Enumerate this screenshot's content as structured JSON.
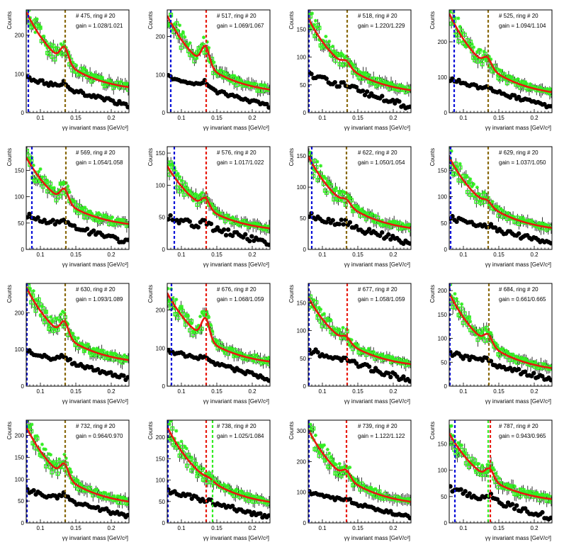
{
  "page": {
    "background": "#ffffff"
  },
  "style": {
    "green": "#33ee22",
    "red": "#e8190f",
    "black": "#000000",
    "blue": "#0a10d8",
    "brown": "#8a6a10"
  },
  "chart_data": [
    {
      "type": "scatter",
      "panel": "475",
      "label": "# 475, ring # 20",
      "gain": "gain = 1.028/1.021",
      "xlabel": "γγ invariant mass [GeV/c²]",
      "ylabel": "Counts",
      "xlim": [
        0.08,
        0.225
      ],
      "ylim": [
        0,
        265
      ],
      "xticks": [
        0.1,
        0.15,
        0.2
      ],
      "xtick_labels": [
        "0.1",
        "0.15",
        "0.2"
      ],
      "yticks": [
        0,
        100,
        200
      ],
      "ytick_labels": [
        "0",
        "100",
        "200"
      ],
      "peak_x": 0.134,
      "base_start": 260,
      "base_end": 50,
      "peak_height": 40,
      "lower_start": 90,
      "lower_end": 18,
      "lower_peak": 15,
      "lines": [
        {
          "x": 0.083,
          "color": "#0a10d8"
        },
        {
          "x": 0.135,
          "color": "#8a6a10"
        }
      ]
    },
    {
      "type": "scatter",
      "panel": "517",
      "label": "# 517, ring # 20",
      "gain": "gain = 1.069/1.067",
      "xlabel": "γγ invariant mass [GeV/c²]",
      "ylabel": "Counts",
      "xlim": [
        0.08,
        0.225
      ],
      "ylim": [
        0,
        270
      ],
      "xticks": [
        0.1,
        0.15,
        0.2
      ],
      "xtick_labels": [
        "0.1",
        "0.15",
        "0.2"
      ],
      "yticks": [
        0,
        100,
        200
      ],
      "ytick_labels": [
        "0",
        "100",
        "200"
      ],
      "peak_x": 0.134,
      "base_start": 255,
      "base_end": 45,
      "peak_height": 50,
      "lower_start": 95,
      "lower_end": 15,
      "lower_peak": 15,
      "lines": [
        {
          "x": 0.085,
          "color": "#0a10d8"
        },
        {
          "x": 0.135,
          "color": "#e8190f"
        }
      ]
    },
    {
      "type": "scatter",
      "panel": "518",
      "label": "# 518, ring # 20",
      "gain": "gain = 1.220/1.229",
      "xlabel": "γγ invariant mass [GeV/c²]",
      "ylabel": "Counts",
      "xlim": [
        0.08,
        0.225
      ],
      "ylim": [
        0,
        185
      ],
      "xticks": [
        0.1,
        0.15,
        0.2
      ],
      "xtick_labels": [
        "0.1",
        "0.15",
        "0.2"
      ],
      "yticks": [
        0,
        50,
        100,
        150
      ],
      "ytick_labels": [
        "0",
        "50",
        "100",
        "150"
      ],
      "peak_x": 0.134,
      "base_start": 170,
      "base_end": 30,
      "peak_height": 10,
      "lower_start": 68,
      "lower_end": 10,
      "lower_peak": 5,
      "lines": [
        {
          "x": 0.081,
          "color": "#0a10d8"
        },
        {
          "x": 0.135,
          "color": "#8a6a10"
        }
      ]
    },
    {
      "type": "scatter",
      "panel": "525",
      "label": "# 525, ring # 20",
      "gain": "gain = 1.094/1.104",
      "xlabel": "γγ invariant mass [GeV/c²]",
      "ylabel": "Counts",
      "xlim": [
        0.08,
        0.225
      ],
      "ylim": [
        0,
        290
      ],
      "xticks": [
        0.1,
        0.15,
        0.2
      ],
      "xtick_labels": [
        "0.1",
        "0.15",
        "0.2"
      ],
      "yticks": [
        0,
        100,
        200
      ],
      "ytick_labels": [
        "0",
        "100",
        "200"
      ],
      "peak_x": 0.134,
      "base_start": 280,
      "base_end": 40,
      "peak_height": 25,
      "lower_start": 95,
      "lower_end": 15,
      "lower_peak": 10,
      "lines": [
        {
          "x": 0.087,
          "color": "#0a10d8"
        },
        {
          "x": 0.135,
          "color": "#8a6a10"
        }
      ]
    },
    {
      "type": "scatter",
      "panel": "569",
      "label": "# 569, ring # 20",
      "gain": "gain = 1.054/1.058",
      "xlabel": "γγ invariant mass [GeV/c²]",
      "ylabel": "Counts",
      "xlim": [
        0.08,
        0.225
      ],
      "ylim": [
        0,
        195
      ],
      "xticks": [
        0.1,
        0.15,
        0.2
      ],
      "xtick_labels": [
        "0.1",
        "0.15",
        "0.2"
      ],
      "yticks": [
        0,
        50,
        100,
        150
      ],
      "ytick_labels": [
        "0",
        "50",
        "100",
        "150"
      ],
      "peak_x": 0.134,
      "base_start": 175,
      "base_end": 38,
      "peak_height": 25,
      "lower_start": 65,
      "lower_end": 13,
      "lower_peak": 10,
      "lines": [
        {
          "x": 0.088,
          "color": "#0a10d8"
        },
        {
          "x": 0.136,
          "color": "#8a6a10"
        }
      ]
    },
    {
      "type": "scatter",
      "panel": "576",
      "label": "# 576, ring # 20",
      "gain": "gain = 1.017/1.022",
      "xlabel": "γγ invariant mass [GeV/c²]",
      "ylabel": "Counts",
      "xlim": [
        0.08,
        0.225
      ],
      "ylim": [
        0,
        160
      ],
      "xticks": [
        0.1,
        0.15,
        0.2
      ],
      "xtick_labels": [
        "0.1",
        "0.15",
        "0.2"
      ],
      "yticks": [
        0,
        50,
        100,
        150
      ],
      "ytick_labels": [
        "0",
        "50",
        "100",
        "150"
      ],
      "peak_x": 0.134,
      "base_start": 130,
      "base_end": 25,
      "peak_height": 15,
      "lower_start": 50,
      "lower_end": 10,
      "lower_peak": 8,
      "lines": [
        {
          "x": 0.09,
          "color": "#0a10d8"
        },
        {
          "x": 0.135,
          "color": "#e8190f"
        }
      ]
    },
    {
      "type": "scatter",
      "panel": "622",
      "label": "# 622, ring # 20",
      "gain": "gain = 1.050/1.054",
      "xlabel": "γγ invariant mass [GeV/c²]",
      "ylabel": "Counts",
      "xlim": [
        0.08,
        0.225
      ],
      "ylim": [
        0,
        165
      ],
      "xticks": [
        0.1,
        0.15,
        0.2
      ],
      "xtick_labels": [
        "0.1",
        "0.15",
        "0.2"
      ],
      "yticks": [
        0,
        50,
        100,
        150
      ],
      "ytick_labels": [
        "0",
        "50",
        "100",
        "150"
      ],
      "peak_x": 0.134,
      "base_start": 150,
      "base_end": 25,
      "peak_height": 8,
      "lower_start": 55,
      "lower_end": 10,
      "lower_peak": 5,
      "lines": [
        {
          "x": 0.085,
          "color": "#0a10d8"
        },
        {
          "x": 0.134,
          "color": "#8a6a10"
        }
      ]
    },
    {
      "type": "scatter",
      "panel": "629",
      "label": "# 629, ring # 20",
      "gain": "gain = 1.037/1.050",
      "xlabel": "γγ invariant mass [GeV/c²]",
      "ylabel": "Counts",
      "xlim": [
        0.08,
        0.225
      ],
      "ylim": [
        0,
        195
      ],
      "xticks": [
        0.1,
        0.15,
        0.2
      ],
      "xtick_labels": [
        "0.1",
        "0.15",
        "0.2"
      ],
      "yticks": [
        0,
        50,
        100,
        150
      ],
      "ytick_labels": [
        "0",
        "50",
        "100",
        "150"
      ],
      "peak_x": 0.134,
      "base_start": 175,
      "base_end": 30,
      "peak_height": 8,
      "lower_start": 60,
      "lower_end": 10,
      "lower_peak": 5,
      "lines": [
        {
          "x": 0.082,
          "color": "#0a10d8"
        },
        {
          "x": 0.135,
          "color": "#8a6a10"
        }
      ]
    },
    {
      "type": "scatter",
      "panel": "630",
      "label": "# 630, ring # 20",
      "gain": "gain = 1.093/1.089",
      "xlabel": "γγ invariant mass [GeV/c²]",
      "ylabel": "Counts",
      "xlim": [
        0.08,
        0.225
      ],
      "ylim": [
        0,
        280
      ],
      "xticks": [
        0.1,
        0.15,
        0.2
      ],
      "xtick_labels": [
        "0.1",
        "0.15",
        "0.2"
      ],
      "yticks": [
        0,
        100,
        200
      ],
      "ytick_labels": [
        "0",
        "100",
        "200"
      ],
      "peak_x": 0.134,
      "base_start": 270,
      "base_end": 55,
      "peak_height": 40,
      "lower_start": 95,
      "lower_end": 20,
      "lower_peak": 15,
      "lines": [
        {
          "x": 0.081,
          "color": "#0a10d8"
        },
        {
          "x": 0.135,
          "color": "#8a6a10"
        }
      ]
    },
    {
      "type": "scatter",
      "panel": "676",
      "label": "# 676, ring # 20",
      "gain": "gain = 1.068/1.059",
      "xlabel": "γγ invariant mass [GeV/c²]",
      "ylabel": "Counts",
      "xlim": [
        0.08,
        0.225
      ],
      "ylim": [
        0,
        270
      ],
      "xticks": [
        0.1,
        0.15,
        0.2
      ],
      "xtick_labels": [
        "0.1",
        "0.15",
        "0.2"
      ],
      "yticks": [
        0,
        100,
        200
      ],
      "ytick_labels": [
        "0",
        "100",
        "200"
      ],
      "peak_x": 0.134,
      "base_start": 245,
      "base_end": 50,
      "peak_height": 55,
      "lower_start": 95,
      "lower_end": 18,
      "lower_peak": 12,
      "lines": [
        {
          "x": 0.086,
          "color": "#0a10d8"
        },
        {
          "x": 0.135,
          "color": "#e8190f"
        }
      ]
    },
    {
      "type": "scatter",
      "panel": "677",
      "label": "# 677, ring # 20",
      "gain": "gain = 1.058/1.059",
      "xlabel": "γγ invariant mass [GeV/c²]",
      "ylabel": "Counts",
      "xlim": [
        0.08,
        0.225
      ],
      "ylim": [
        0,
        185
      ],
      "xticks": [
        0.1,
        0.15,
        0.2
      ],
      "xtick_labels": [
        "0.1",
        "0.15",
        "0.2"
      ],
      "yticks": [
        0,
        50,
        100,
        150
      ],
      "ytick_labels": [
        "0",
        "50",
        "100",
        "150"
      ],
      "peak_x": 0.134,
      "base_start": 160,
      "base_end": 30,
      "peak_height": 10,
      "lower_start": 65,
      "lower_end": 10,
      "lower_peak": 5,
      "lines": [
        {
          "x": 0.081,
          "color": "#0a10d8"
        },
        {
          "x": 0.135,
          "color": "#e8190f"
        }
      ]
    },
    {
      "type": "scatter",
      "panel": "684",
      "label": "# 684, ring # 20",
      "gain": "gain = 0.661/0.665",
      "xlabel": "γγ invariant mass [GeV/c²]",
      "ylabel": "Counts",
      "xlim": [
        0.08,
        0.225
      ],
      "ylim": [
        0,
        215
      ],
      "xticks": [
        0.1,
        0.15,
        0.2
      ],
      "xtick_labels": [
        "0.1",
        "0.15",
        "0.2"
      ],
      "yticks": [
        0,
        50,
        100,
        150,
        200
      ],
      "ytick_labels": [
        "0",
        "50",
        "100",
        "150",
        "200"
      ],
      "peak_x": 0.135,
      "base_start": 195,
      "base_end": 25,
      "peak_height": 20,
      "lower_start": 70,
      "lower_end": 12,
      "lower_peak": 8,
      "lines": [
        {
          "x": 0.081,
          "color": "#0a10d8"
        },
        {
          "x": 0.136,
          "color": "#8a6a10"
        }
      ]
    },
    {
      "type": "scatter",
      "panel": "732",
      "label": "# 732, ring # 20",
      "gain": "gain = 0.964/0.970",
      "xlabel": "γγ invariant mass [GeV/c²]",
      "ylabel": "Counts",
      "xlim": [
        0.08,
        0.225
      ],
      "ylim": [
        0,
        235
      ],
      "xticks": [
        0.1,
        0.15,
        0.2
      ],
      "xtick_labels": [
        "0.1",
        "0.15",
        "0.2"
      ],
      "yticks": [
        0,
        50,
        100,
        150,
        200
      ],
      "ytick_labels": [
        "0",
        "50",
        "100",
        "150",
        "200"
      ],
      "peak_x": 0.134,
      "base_start": 220,
      "base_end": 35,
      "peak_height": 30,
      "lower_start": 75,
      "lower_end": 15,
      "lower_peak": 12,
      "lines": [
        {
          "x": 0.081,
          "color": "#0a10d8"
        },
        {
          "x": 0.135,
          "color": "#8a6a10"
        }
      ]
    },
    {
      "type": "scatter",
      "panel": "738",
      "label": "# 738, ring # 20",
      "gain": "gain = 1.025/1.084",
      "xlabel": "γγ invariant mass [GeV/c²]",
      "ylabel": "Counts",
      "xlim": [
        0.08,
        0.225
      ],
      "ylim": [
        0,
        240
      ],
      "xticks": [
        0.1,
        0.15,
        0.2
      ],
      "xtick_labels": [
        "0.1",
        "0.15",
        "0.2"
      ],
      "yticks": [
        0,
        50,
        100,
        150,
        200
      ],
      "ytick_labels": [
        "0",
        "50",
        "100",
        "150",
        "200"
      ],
      "peak_x": 0.14,
      "base_start": 225,
      "base_end": 35,
      "peak_height": 5,
      "lower_start": 75,
      "lower_end": 12,
      "lower_peak": 3,
      "lines": [
        {
          "x": 0.081,
          "color": "#0a10d8"
        },
        {
          "x": 0.135,
          "color": "#e8190f"
        },
        {
          "x": 0.144,
          "color": "#33ee22"
        }
      ]
    },
    {
      "type": "scatter",
      "panel": "739",
      "label": "# 739, ring # 20",
      "gain": "gain = 1.122/1.122",
      "xlabel": "γγ invariant mass [GeV/c²]",
      "ylabel": "Counts",
      "xlim": [
        0.08,
        0.225
      ],
      "ylim": [
        0,
        335
      ],
      "xticks": [
        0.1,
        0.15,
        0.2
      ],
      "xtick_labels": [
        "0.1",
        "0.15",
        "0.2"
      ],
      "yticks": [
        0,
        100,
        200,
        300
      ],
      "ytick_labels": [
        "0",
        "100",
        "200",
        "300"
      ],
      "peak_x": 0.134,
      "base_start": 305,
      "base_end": 50,
      "peak_height": 25,
      "lower_start": 100,
      "lower_end": 18,
      "lower_peak": 10,
      "lines": [
        {
          "x": 0.081,
          "color": "#0a10d8"
        },
        {
          "x": 0.134,
          "color": "#e8190f"
        }
      ]
    },
    {
      "type": "scatter",
      "panel": "787",
      "label": "# 787, ring # 20",
      "gain": "gain = 0.943/0.965",
      "xlabel": "γγ invariant mass [GeV/c²]",
      "ylabel": "Counts",
      "xlim": [
        0.08,
        0.225
      ],
      "ylim": [
        0,
        195
      ],
      "xticks": [
        0.1,
        0.15,
        0.2
      ],
      "xtick_labels": [
        "0.1",
        "0.15",
        "0.2"
      ],
      "yticks": [
        0,
        50,
        100,
        150
      ],
      "ytick_labels": [
        "0",
        "50",
        "100",
        "150"
      ],
      "peak_x": 0.137,
      "base_start": 170,
      "base_end": 35,
      "peak_height": 20,
      "lower_start": 65,
      "lower_end": 10,
      "lower_peak": 8,
      "lines": [
        {
          "x": 0.088,
          "color": "#0a10d8"
        },
        {
          "x": 0.135,
          "color": "#33ee22"
        },
        {
          "x": 0.138,
          "color": "#e8190f"
        }
      ]
    }
  ]
}
